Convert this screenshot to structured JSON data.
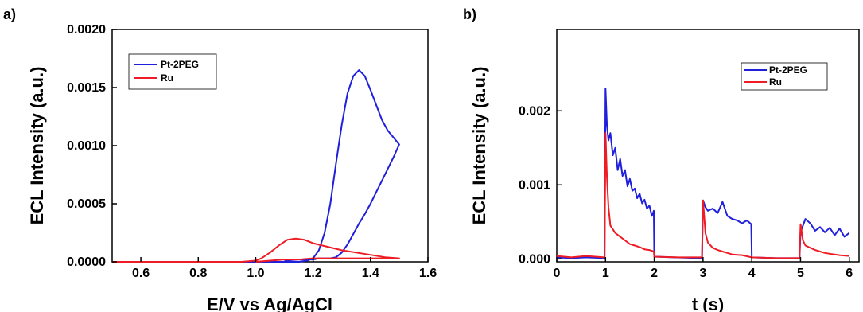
{
  "chart_data": [
    {
      "panel_label": "a)",
      "type": "line",
      "xlabel": "E/V vs Ag/AgCl",
      "ylabel": "ECL Intensity (a.u.)",
      "xlim": [
        0.5,
        1.6
      ],
      "ylim": [
        0,
        0.002
      ],
      "xticks": [
        0.6,
        0.8,
        1.0,
        1.2,
        1.4,
        1.6
      ],
      "xtick_labels": [
        "0.6",
        "0.8",
        "1.0",
        "1.2",
        "1.4",
        "1.6"
      ],
      "yticks": [
        0,
        0.0005,
        0.001,
        0.0015,
        0.002
      ],
      "ytick_labels": [
        "0.0000",
        "0.0005",
        "0.0010",
        "0.0015",
        "0.0020"
      ],
      "legend_position": "top-left",
      "series": [
        {
          "name": "Pt-2PEG",
          "color": "#1f1fdc",
          "x": [
            0.5,
            1.0,
            1.15,
            1.18,
            1.2,
            1.22,
            1.24,
            1.26,
            1.28,
            1.3,
            1.32,
            1.34,
            1.36,
            1.38,
            1.4,
            1.42,
            1.44,
            1.46,
            1.48,
            1.5,
            1.48,
            1.46,
            1.44,
            1.42,
            1.4,
            1.38,
            1.36,
            1.34,
            1.32,
            1.3,
            1.28,
            1.26,
            1.24,
            1.22,
            1.2,
            1.15,
            1.1
          ],
          "y": [
            0.0,
            0.0,
            0.0,
            1e-05,
            3e-05,
            0.0001,
            0.00025,
            0.0005,
            0.00085,
            0.00118,
            0.00145,
            0.0016,
            0.00165,
            0.0016,
            0.00148,
            0.00135,
            0.00122,
            0.00113,
            0.00107,
            0.00101,
            0.0009,
            0.0008,
            0.0007,
            0.0006,
            0.0005,
            0.00041,
            0.00033,
            0.00024,
            0.00015,
            8e-05,
            4e-05,
            3e-05,
            3e-05,
            3e-05,
            2e-05,
            2e-05,
            1e-05
          ]
        },
        {
          "name": "Ru",
          "color": "#ee1c24",
          "x": [
            0.5,
            0.95,
            1.0,
            1.02,
            1.05,
            1.08,
            1.11,
            1.14,
            1.17,
            1.2,
            1.25,
            1.3,
            1.35,
            1.4,
            1.45,
            1.5,
            1.45,
            1.4,
            1.35,
            1.3,
            1.25,
            1.2,
            1.15,
            1.1,
            1.05,
            1.0
          ],
          "y": [
            0.0,
            0.0,
            1e-05,
            3e-05,
            8e-05,
            0.00014,
            0.00019,
            0.0002,
            0.00019,
            0.00016,
            0.00013,
            0.0001,
            8e-05,
            6e-05,
            4e-05,
            3e-05,
            3e-05,
            3e-05,
            3e-05,
            3e-05,
            3e-05,
            3e-05,
            2e-05,
            2e-05,
            1e-05,
            0.0
          ]
        }
      ]
    },
    {
      "panel_label": "b)",
      "type": "line",
      "xlabel": "t (s)",
      "ylabel": "ECL Intensity (a.u.)",
      "xlim": [
        0,
        6.2
      ],
      "ylim": [
        -4e-05,
        0.0031
      ],
      "xticks": [
        0,
        1,
        2,
        3,
        4,
        5,
        6
      ],
      "xtick_labels": [
        "0",
        "1",
        "2",
        "3",
        "4",
        "5",
        "6"
      ],
      "yticks": [
        0,
        0.001,
        0.002
      ],
      "ytick_labels": [
        "0.000",
        "0.001",
        "0.002"
      ],
      "legend_position": "top-right",
      "series": [
        {
          "name": "Pt-2PEG",
          "color": "#1f1fdc",
          "x": [
            0,
            0.3,
            0.6,
            0.98,
            1.0,
            1.03,
            1.06,
            1.1,
            1.15,
            1.2,
            1.25,
            1.3,
            1.35,
            1.4,
            1.45,
            1.5,
            1.55,
            1.6,
            1.65,
            1.7,
            1.75,
            1.8,
            1.85,
            1.9,
            1.95,
            1.99,
            2.0,
            2.4,
            2.98,
            3.0,
            3.05,
            3.1,
            3.2,
            3.3,
            3.4,
            3.5,
            3.6,
            3.7,
            3.8,
            3.9,
            3.99,
            4.0,
            4.5,
            4.98,
            5.0,
            5.05,
            5.1,
            5.2,
            5.3,
            5.4,
            5.5,
            5.6,
            5.7,
            5.8,
            5.9,
            6.0
          ],
          "y": [
            2e-05,
            1e-05,
            2e-05,
            1e-05,
            0.0023,
            0.0018,
            0.0016,
            0.0017,
            0.0014,
            0.0015,
            0.0012,
            0.00135,
            0.00112,
            0.0012,
            0.00098,
            0.00108,
            0.00092,
            0.00095,
            0.00082,
            0.00088,
            0.00075,
            0.0008,
            0.00068,
            0.00072,
            0.00058,
            0.00065,
            3e-05,
            2e-05,
            1e-05,
            0.00079,
            0.0007,
            0.00065,
            0.00068,
            0.00062,
            0.00077,
            0.00058,
            0.00054,
            0.00052,
            0.00048,
            0.00052,
            0.00047,
            2e-05,
            1e-05,
            1e-05,
            0.00036,
            0.00045,
            0.00054,
            0.00048,
            0.00038,
            0.00043,
            0.00036,
            0.00042,
            0.00032,
            0.00041,
            0.0003,
            0.00035
          ]
        },
        {
          "name": "Ru",
          "color": "#ee1c24",
          "x": [
            0,
            0.3,
            0.6,
            0.98,
            1.0,
            1.03,
            1.06,
            1.1,
            1.15,
            1.2,
            1.3,
            1.4,
            1.5,
            1.6,
            1.7,
            1.8,
            1.9,
            1.99,
            2.0,
            2.5,
            2.98,
            3.0,
            3.05,
            3.1,
            3.2,
            3.3,
            3.4,
            3.5,
            3.6,
            3.8,
            4.0,
            4.5,
            4.98,
            5.0,
            5.05,
            5.1,
            5.2,
            5.3,
            5.4,
            5.5,
            5.6,
            5.8,
            6.0
          ],
          "y": [
            4e-05,
            2e-05,
            4e-05,
            2e-05,
            0.0017,
            0.0011,
            0.0007,
            0.00045,
            0.0004,
            0.00035,
            0.0003,
            0.00025,
            0.0002,
            0.00018,
            0.00016,
            0.00013,
            0.00012,
            0.0001,
            3e-05,
            2e-05,
            2e-05,
            0.00079,
            0.00035,
            0.00022,
            0.00015,
            0.00012,
            0.0001,
            8e-05,
            6e-05,
            5e-05,
            2e-05,
            1e-05,
            1e-05,
            0.00047,
            0.00025,
            0.00018,
            0.00015,
            0.00012,
            0.0001,
            8e-05,
            7e-05,
            5e-05,
            4e-05
          ]
        }
      ]
    }
  ]
}
